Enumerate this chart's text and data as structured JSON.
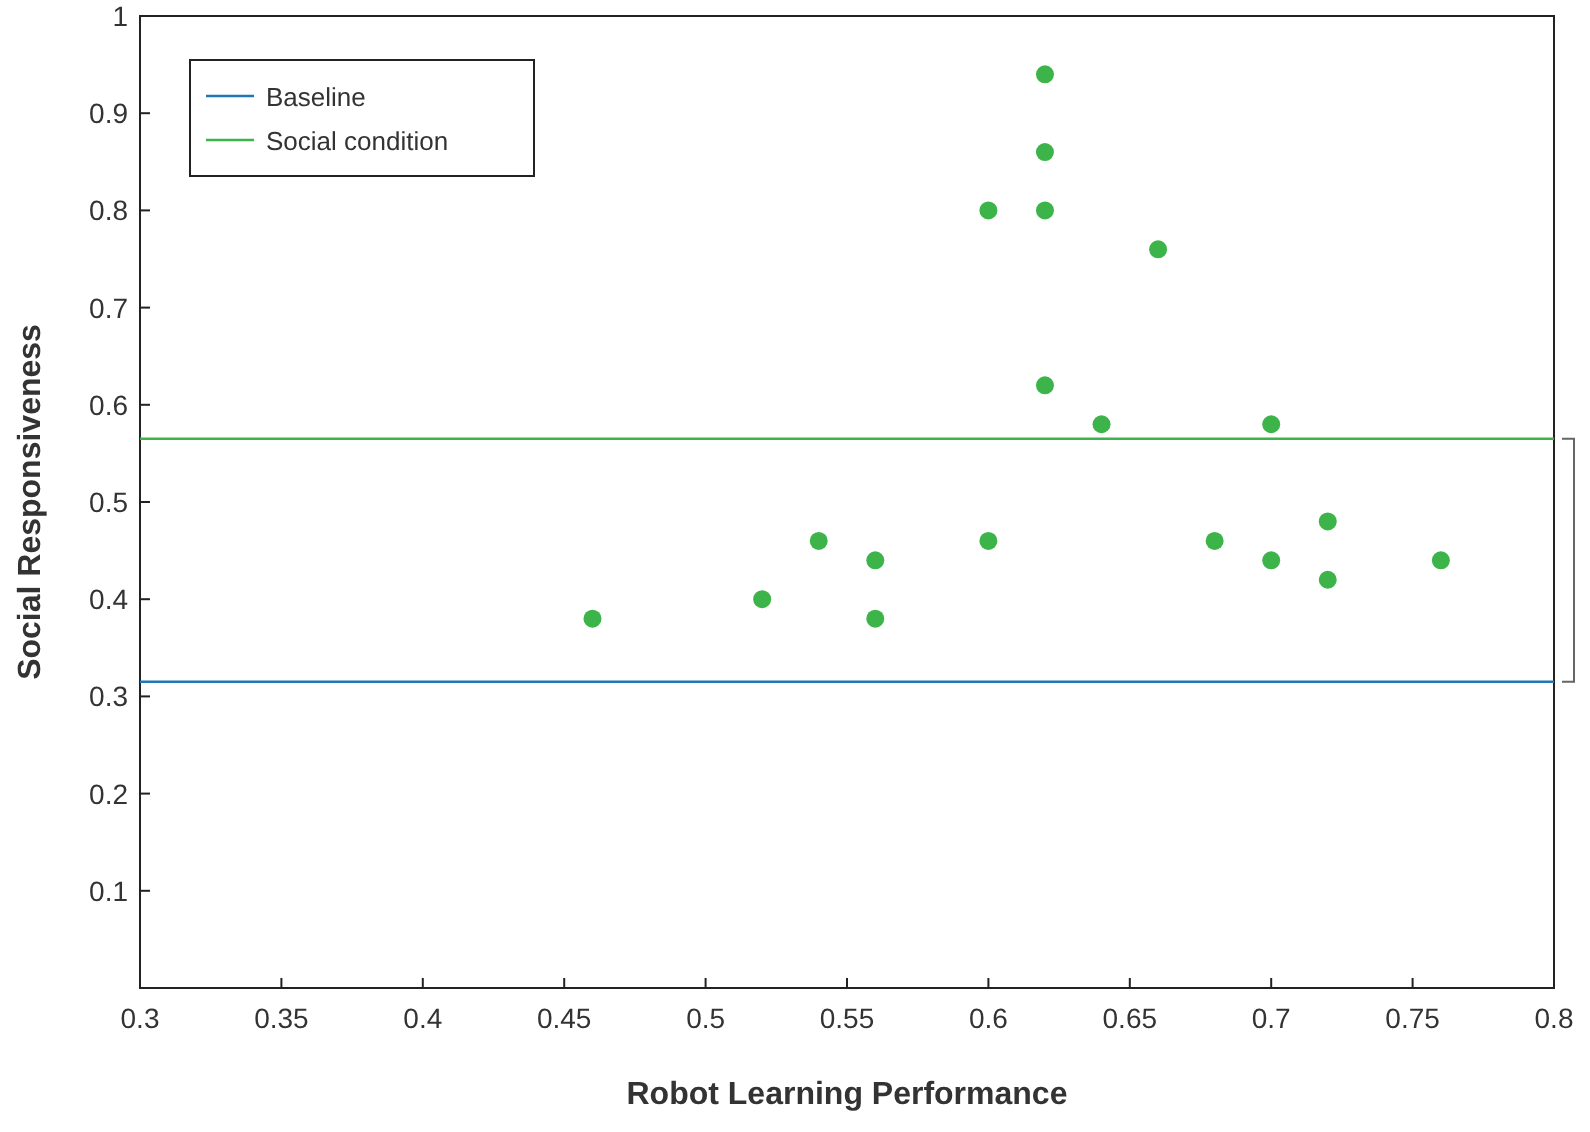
{
  "chart_data": {
    "type": "scatter",
    "xlabel": "Robot Learning Performance",
    "ylabel": "Social Responsiveness",
    "x": [
      0.46,
      0.52,
      0.54,
      0.56,
      0.56,
      0.6,
      0.6,
      0.62,
      0.62,
      0.62,
      0.62,
      0.64,
      0.66,
      0.68,
      0.7,
      0.7,
      0.72,
      0.72,
      0.76
    ],
    "series": [
      {
        "color": "#3cb449",
        "values": [
          0.38,
          0.4,
          0.46,
          0.44,
          0.38,
          0.8,
          0.46,
          0.94,
          0.86,
          0.8,
          0.62,
          0.58,
          0.76,
          0.46,
          0.58,
          0.44,
          0.48,
          0.42,
          0.44
        ]
      }
    ],
    "xlim": [
      0.3,
      0.8
    ],
    "xticks": [
      0.3,
      0.35,
      0.4,
      0.45,
      0.5,
      0.55,
      0.6,
      0.65,
      0.7,
      0.75,
      0.8
    ],
    "ylim": [
      0,
      1
    ],
    "yticks": [
      0.1,
      0.2,
      0.3,
      0.4,
      0.5,
      0.6,
      0.7,
      0.8,
      0.9,
      1
    ],
    "ref_lines": [
      {
        "axis": "y",
        "value": 0.315,
        "label": "Baseline",
        "color": "#1f77b4"
      },
      {
        "axis": "y",
        "value": 0.565,
        "label": "Social condition",
        "color": "#3cb449"
      }
    ],
    "marker": "circle",
    "grid": false,
    "legend": "top left"
  }
}
